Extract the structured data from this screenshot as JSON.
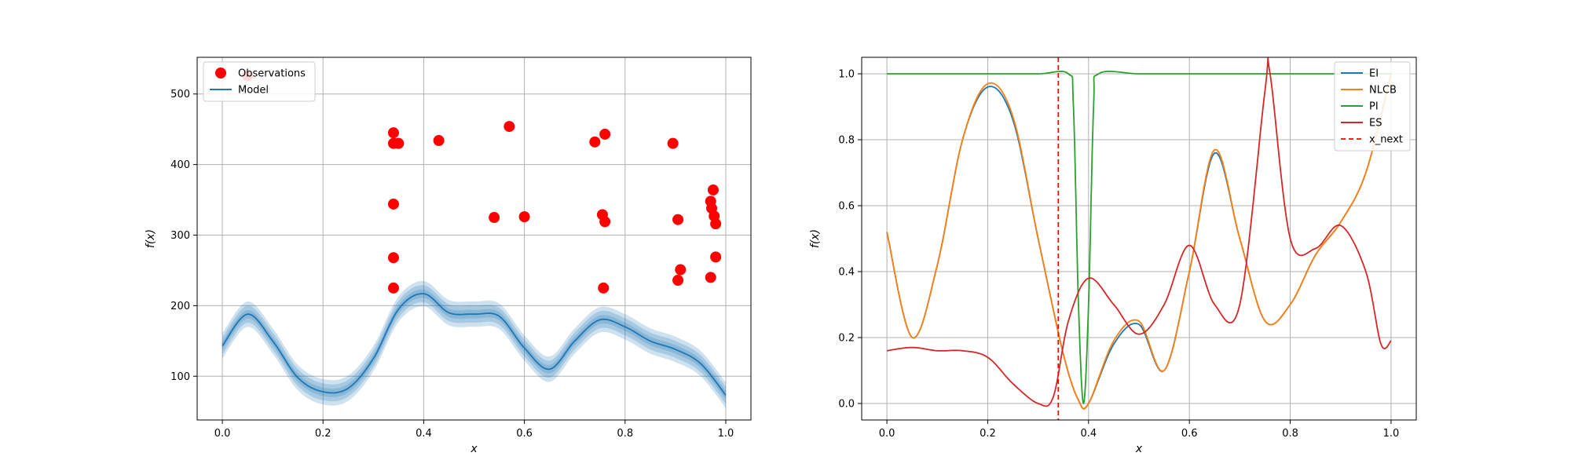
{
  "chart_data": [
    {
      "type": "line",
      "xlabel": "x",
      "ylabel": "f(x)",
      "xlim": [
        -0.05,
        1.05
      ],
      "ylim": [
        38,
        552
      ],
      "xticks": [
        "0.0",
        "0.2",
        "0.4",
        "0.6",
        "0.8",
        "1.0"
      ],
      "yticks": [
        "100",
        "200",
        "300",
        "400",
        "500"
      ],
      "grid": true,
      "legend": {
        "placement": "top-left",
        "entries": [
          "Observations",
          "Model"
        ]
      },
      "series": [
        {
          "name": "Observations",
          "kind": "scatter",
          "color": "#ff0000",
          "points": [
            [
              0.05,
              526
            ],
            [
              0.34,
              225
            ],
            [
              0.34,
              268
            ],
            [
              0.34,
              344
            ],
            [
              0.34,
              445
            ],
            [
              0.34,
              430
            ],
            [
              0.35,
              430
            ],
            [
              0.43,
              434
            ],
            [
              0.54,
              325
            ],
            [
              0.57,
              454
            ],
            [
              0.6,
              326
            ],
            [
              0.74,
              432
            ],
            [
              0.755,
              329
            ],
            [
              0.757,
              225
            ],
            [
              0.76,
              319
            ],
            [
              0.76,
              443
            ],
            [
              0.895,
              430
            ],
            [
              0.905,
              236
            ],
            [
              0.905,
              322
            ],
            [
              0.91,
              251
            ],
            [
              0.97,
              240
            ],
            [
              0.97,
              348
            ],
            [
              0.972,
              338
            ],
            [
              0.975,
              364
            ],
            [
              0.977,
              327
            ],
            [
              0.98,
              316
            ],
            [
              0.98,
              269
            ]
          ]
        },
        {
          "name": "Model",
          "kind": "line",
          "color": "#1f77b4",
          "x": [
            0.0,
            0.05,
            0.1,
            0.15,
            0.2,
            0.25,
            0.3,
            0.35,
            0.4,
            0.45,
            0.5,
            0.55,
            0.6,
            0.65,
            0.7,
            0.75,
            0.8,
            0.85,
            0.9,
            0.95,
            1.0
          ],
          "y": [
            143,
            188,
            150,
            98,
            78,
            83,
            125,
            195,
            217,
            190,
            188,
            185,
            140,
            110,
            150,
            180,
            170,
            150,
            138,
            118,
            73
          ],
          "band_widths": [
            6,
            12,
            18
          ]
        }
      ]
    },
    {
      "type": "line",
      "xlabel": "x",
      "ylabel": "f(x)",
      "xlim": [
        -0.05,
        1.05
      ],
      "ylim": [
        -0.05,
        1.05
      ],
      "xticks": [
        "0.0",
        "0.2",
        "0.4",
        "0.6",
        "0.8",
        "1.0"
      ],
      "yticks": [
        "0.0",
        "0.2",
        "0.4",
        "0.6",
        "0.8",
        "1.0"
      ],
      "grid": true,
      "legend": {
        "placement": "top-right",
        "entries": [
          "EI",
          "NLCB",
          "PI",
          "ES",
          "x_next"
        ]
      },
      "x_next": 0.34,
      "series": [
        {
          "name": "EI",
          "color": "#1f77b4",
          "x": [
            0.0,
            0.05,
            0.1,
            0.15,
            0.2,
            0.25,
            0.3,
            0.35,
            0.38,
            0.4,
            0.45,
            0.5,
            0.55,
            0.6,
            0.65,
            0.7,
            0.75,
            0.8,
            0.85,
            0.9,
            0.95,
            1.0
          ],
          "y": [
            0.52,
            0.2,
            0.42,
            0.8,
            0.96,
            0.86,
            0.5,
            0.15,
            0.01,
            0.0,
            0.18,
            0.24,
            0.1,
            0.4,
            0.76,
            0.5,
            0.25,
            0.3,
            0.45,
            0.55,
            0.7,
            1.0
          ]
        },
        {
          "name": "NLCB",
          "color": "#ff7f0e",
          "x": [
            0.0,
            0.05,
            0.1,
            0.15,
            0.2,
            0.25,
            0.3,
            0.35,
            0.38,
            0.4,
            0.45,
            0.5,
            0.55,
            0.6,
            0.65,
            0.7,
            0.75,
            0.8,
            0.85,
            0.9,
            0.95,
            1.0
          ],
          "y": [
            0.52,
            0.2,
            0.42,
            0.8,
            0.97,
            0.87,
            0.5,
            0.15,
            0.01,
            0.0,
            0.19,
            0.25,
            0.1,
            0.4,
            0.77,
            0.5,
            0.25,
            0.3,
            0.45,
            0.55,
            0.7,
            1.0
          ]
        },
        {
          "name": "PI",
          "color": "#2ca02c",
          "x": [
            0.0,
            0.1,
            0.2,
            0.3,
            0.36,
            0.37,
            0.38,
            0.39,
            0.4,
            0.41,
            0.42,
            0.5,
            0.6,
            0.7,
            0.8,
            0.9,
            1.0
          ],
          "y": [
            1.0,
            1.0,
            1.0,
            1.0,
            1.0,
            0.9,
            0.3,
            0.0,
            0.3,
            0.9,
            1.0,
            1.0,
            1.0,
            1.0,
            1.0,
            1.0,
            1.0
          ]
        },
        {
          "name": "ES",
          "color": "#d62728",
          "x": [
            0.0,
            0.05,
            0.1,
            0.15,
            0.2,
            0.25,
            0.3,
            0.33,
            0.36,
            0.4,
            0.45,
            0.5,
            0.55,
            0.6,
            0.65,
            0.7,
            0.75,
            0.76,
            0.8,
            0.85,
            0.9,
            0.95,
            0.98,
            1.0
          ],
          "y": [
            0.16,
            0.17,
            0.16,
            0.16,
            0.14,
            0.06,
            0.0,
            0.02,
            0.25,
            0.38,
            0.3,
            0.21,
            0.3,
            0.48,
            0.3,
            0.3,
            0.95,
            1.0,
            0.5,
            0.47,
            0.54,
            0.4,
            0.18,
            0.19
          ]
        }
      ]
    }
  ]
}
